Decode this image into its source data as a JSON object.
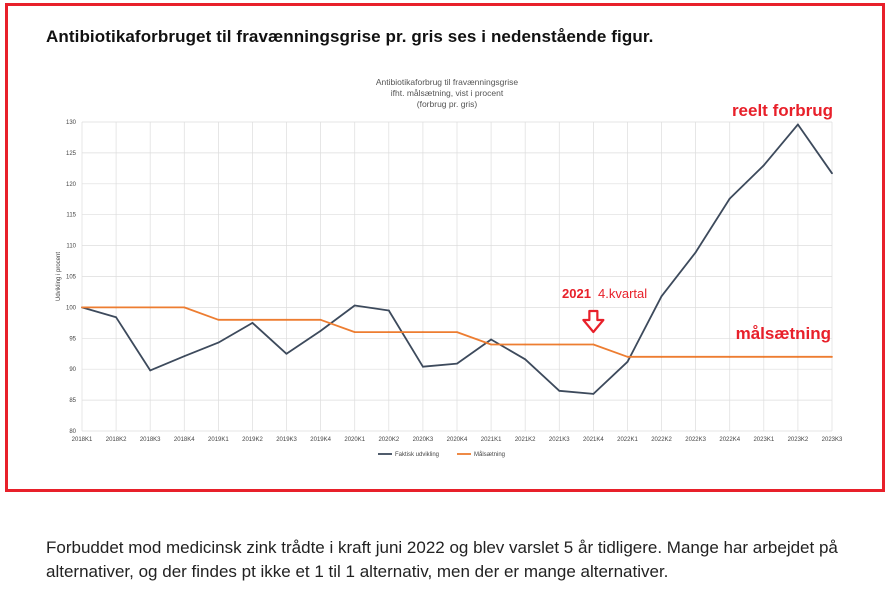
{
  "heading": "Antibiotikaforbruget til fravænningsgrise pr. gris ses i nedenstående figur.",
  "footer_text": "Forbuddet mod medicinsk zink trådte i kraft juni 2022 og blev varslet 5 år tidligere. Mange har arbejdet på alternativer, og der findes pt ikke et 1 til 1 alternativ, men der er mange alternativer.",
  "colors": {
    "frame": "#e8202a",
    "actual": "#3d4a5c",
    "target": "#ed7d31",
    "grid": "#dddddd",
    "annotation": "#e8202a"
  },
  "chart_data": {
    "type": "line",
    "title_lines": [
      "Antibiotikaforbrug til fravænningsgrise",
      "ifht. målsætning, vist i procent",
      "(forbrug pr. gris)"
    ],
    "ylabel": "Udvikling i procent",
    "xlabel": "",
    "ylim": [
      80,
      130
    ],
    "yticks": [
      80,
      85,
      90,
      95,
      100,
      105,
      110,
      115,
      120,
      125,
      130
    ],
    "categories": [
      "2018K1",
      "2018K2",
      "2018K3",
      "2018K4",
      "2019K1",
      "2019K2",
      "2019K3",
      "2019K4",
      "2020K1",
      "2020K2",
      "2020K3",
      "2020K4",
      "2021K1",
      "2021K2",
      "2021K3",
      "2021K4",
      "2022K1",
      "2022K2",
      "2022K3",
      "2022K4",
      "2023K1",
      "2023K2",
      "2023K3"
    ],
    "series": [
      {
        "name": "Faktisk udvikling",
        "color": "#3d4a5c",
        "values": [
          100,
          98.4,
          89.8,
          92.1,
          94.3,
          97.5,
          92.5,
          96.2,
          100.3,
          99.5,
          90.4,
          90.9,
          94.8,
          91.6,
          86.5,
          86.0,
          91.2,
          101.8,
          108.9,
          117.6,
          123.0,
          129.6,
          121.7
        ]
      },
      {
        "name": "Målsætning",
        "color": "#ed7d31",
        "values": [
          100,
          100,
          100,
          100,
          98,
          98,
          98,
          98,
          96,
          96,
          96,
          96,
          94,
          94,
          94,
          94,
          92,
          92,
          92,
          92,
          92,
          92,
          92
        ]
      }
    ],
    "annotations": {
      "actual_label": "reelt forbrug",
      "target_label": "målsætning",
      "year_label": "2021",
      "quarter_label": "4.kvartal",
      "arrow_category_index": 15
    },
    "legend_position": "bottom-left"
  }
}
